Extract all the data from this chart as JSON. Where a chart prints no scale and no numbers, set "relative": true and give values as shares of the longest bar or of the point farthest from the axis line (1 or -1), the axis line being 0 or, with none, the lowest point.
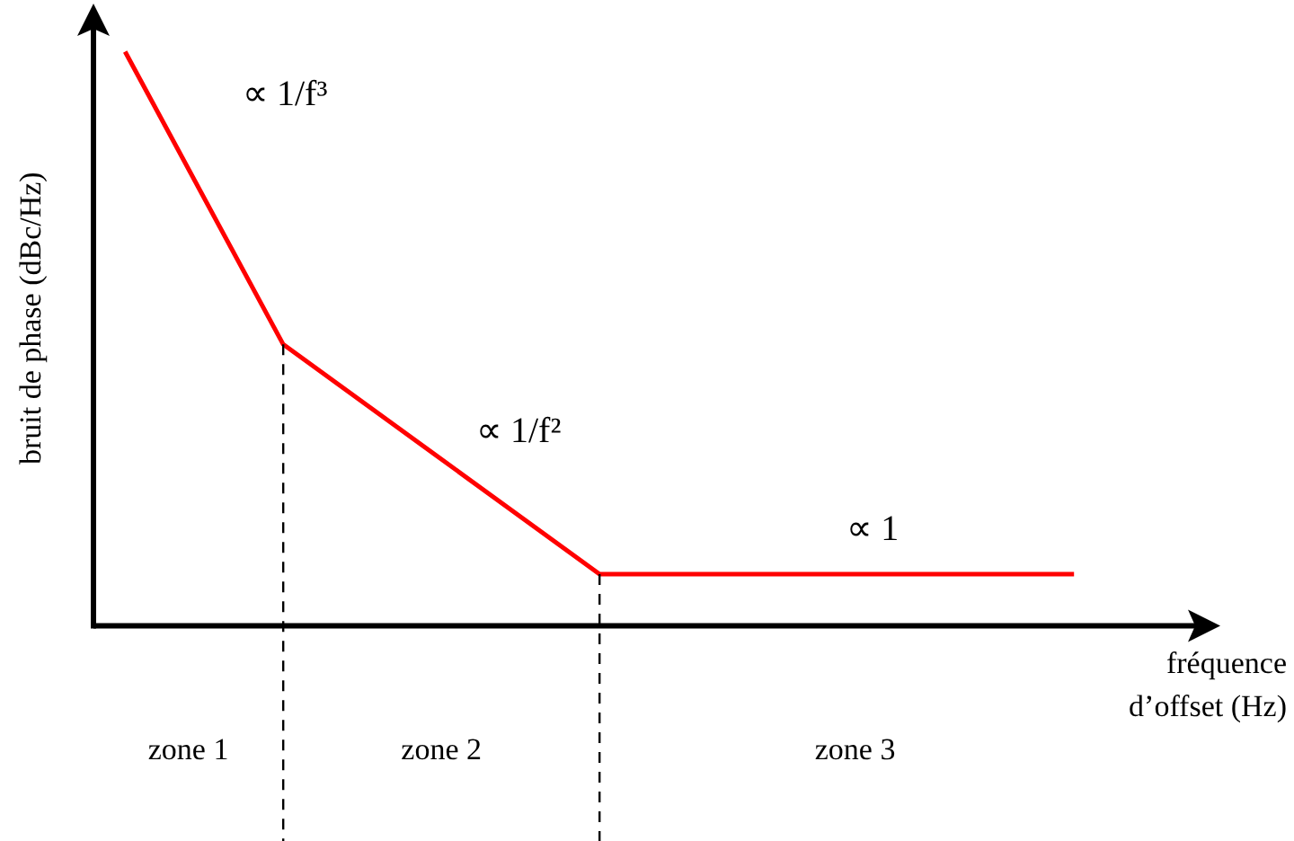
{
  "chart_data": {
    "type": "line",
    "relative": true,
    "xlabel": "fréquence d’offset (Hz)",
    "ylabel": "bruit de phase (dBc/Hz)",
    "legend": false,
    "grid": false,
    "marker": "none",
    "line_style": "solid",
    "categories": [
      null,
      null,
      null,
      null,
      null,
      null,
      null,
      null,
      null,
      null,
      null,
      null,
      null,
      null,
      null,
      null,
      null,
      null,
      null,
      null,
      null,
      null,
      null,
      null,
      null,
      null,
      null,
      null,
      null,
      null,
      null,
      null,
      null,
      null,
      null,
      null
    ],
    "series": [
      {
        "color": "#ff0000",
        "values": [
          null,
          1,
          null,
          null,
          null,
          null,
          0.49,
          null,
          null,
          null,
          null,
          null,
          null,
          null,
          null,
          null,
          0.09,
          null,
          null,
          null,
          null,
          null,
          null,
          null,
          null,
          null,
          null,
          null,
          null,
          null,
          null,
          0.09,
          null,
          null,
          null,
          null
        ]
      }
    ],
    "annotations": [
      "∝ 1/f³",
      "∝ 1/f²",
      "∝ 1",
      "zone 1",
      "zone 2",
      "zone 3"
    ]
  }
}
